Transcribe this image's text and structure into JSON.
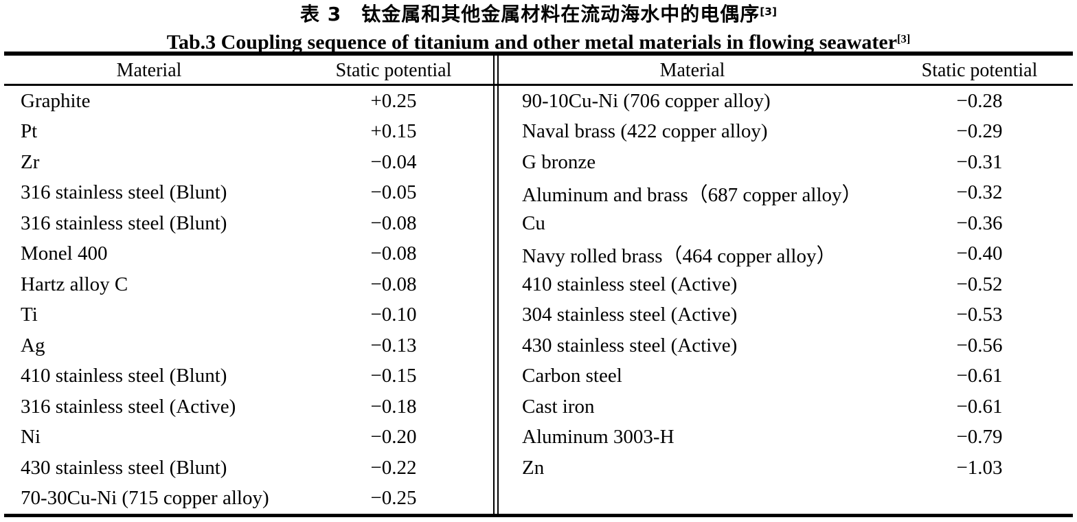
{
  "titles": {
    "zh": "表 3　钛金属和其他金属材料在流动海水中的电偶序",
    "zh_ref": "[3]",
    "en": "Tab.3 Coupling sequence of titanium and other metal materials in flowing seawater",
    "en_ref": "[3]"
  },
  "table": {
    "headers": {
      "material": "Material",
      "potential": "Static potential"
    },
    "left_rows": [
      {
        "material": "Graphite",
        "potential": "+0.25"
      },
      {
        "material": "Pt",
        "potential": "+0.15"
      },
      {
        "material": "Zr",
        "potential": "−0.04"
      },
      {
        "material": "316 stainless steel (Blunt)",
        "potential": "−0.05"
      },
      {
        "material": "316 stainless steel (Blunt)",
        "potential": "−0.08"
      },
      {
        "material": "Monel 400",
        "potential": "−0.08"
      },
      {
        "material": "Hartz alloy C",
        "potential": "−0.08"
      },
      {
        "material": "Ti",
        "potential": "−0.10"
      },
      {
        "material": "Ag",
        "potential": "−0.13"
      },
      {
        "material": "410 stainless steel (Blunt)",
        "potential": "−0.15"
      },
      {
        "material": "316 stainless steel (Active)",
        "potential": "−0.18"
      },
      {
        "material": "Ni",
        "potential": "−0.20"
      },
      {
        "material": "430 stainless steel (Blunt)",
        "potential": "−0.22"
      },
      {
        "material": "70-30Cu-Ni (715 copper alloy)",
        "potential": "−0.25"
      }
    ],
    "right_rows": [
      {
        "material": "90-10Cu-Ni (706 copper alloy)",
        "potential": "−0.28"
      },
      {
        "material": "Naval brass (422 copper alloy)",
        "potential": "−0.29"
      },
      {
        "material": "G bronze",
        "potential": "−0.31"
      },
      {
        "material": "Aluminum and brass（687 copper alloy）",
        "potential": "−0.32"
      },
      {
        "material": "Cu",
        "potential": "−0.36"
      },
      {
        "material": "Navy rolled brass（464 copper alloy）",
        "potential": "−0.40"
      },
      {
        "material": "410 stainless steel (Active)",
        "potential": "−0.52"
      },
      {
        "material": "304 stainless steel (Active)",
        "potential": "−0.53"
      },
      {
        "material": "430 stainless steel (Active)",
        "potential": "−0.56"
      },
      {
        "material": "Carbon steel",
        "potential": "−0.61"
      },
      {
        "material": "Cast iron",
        "potential": "−0.61"
      },
      {
        "material": "Aluminum 3003-H",
        "potential": "−0.79"
      },
      {
        "material": "Zn",
        "potential": "−1.03"
      }
    ]
  },
  "colors": {
    "background": "#ffffff",
    "text": "#000000",
    "rule": "#000000"
  }
}
